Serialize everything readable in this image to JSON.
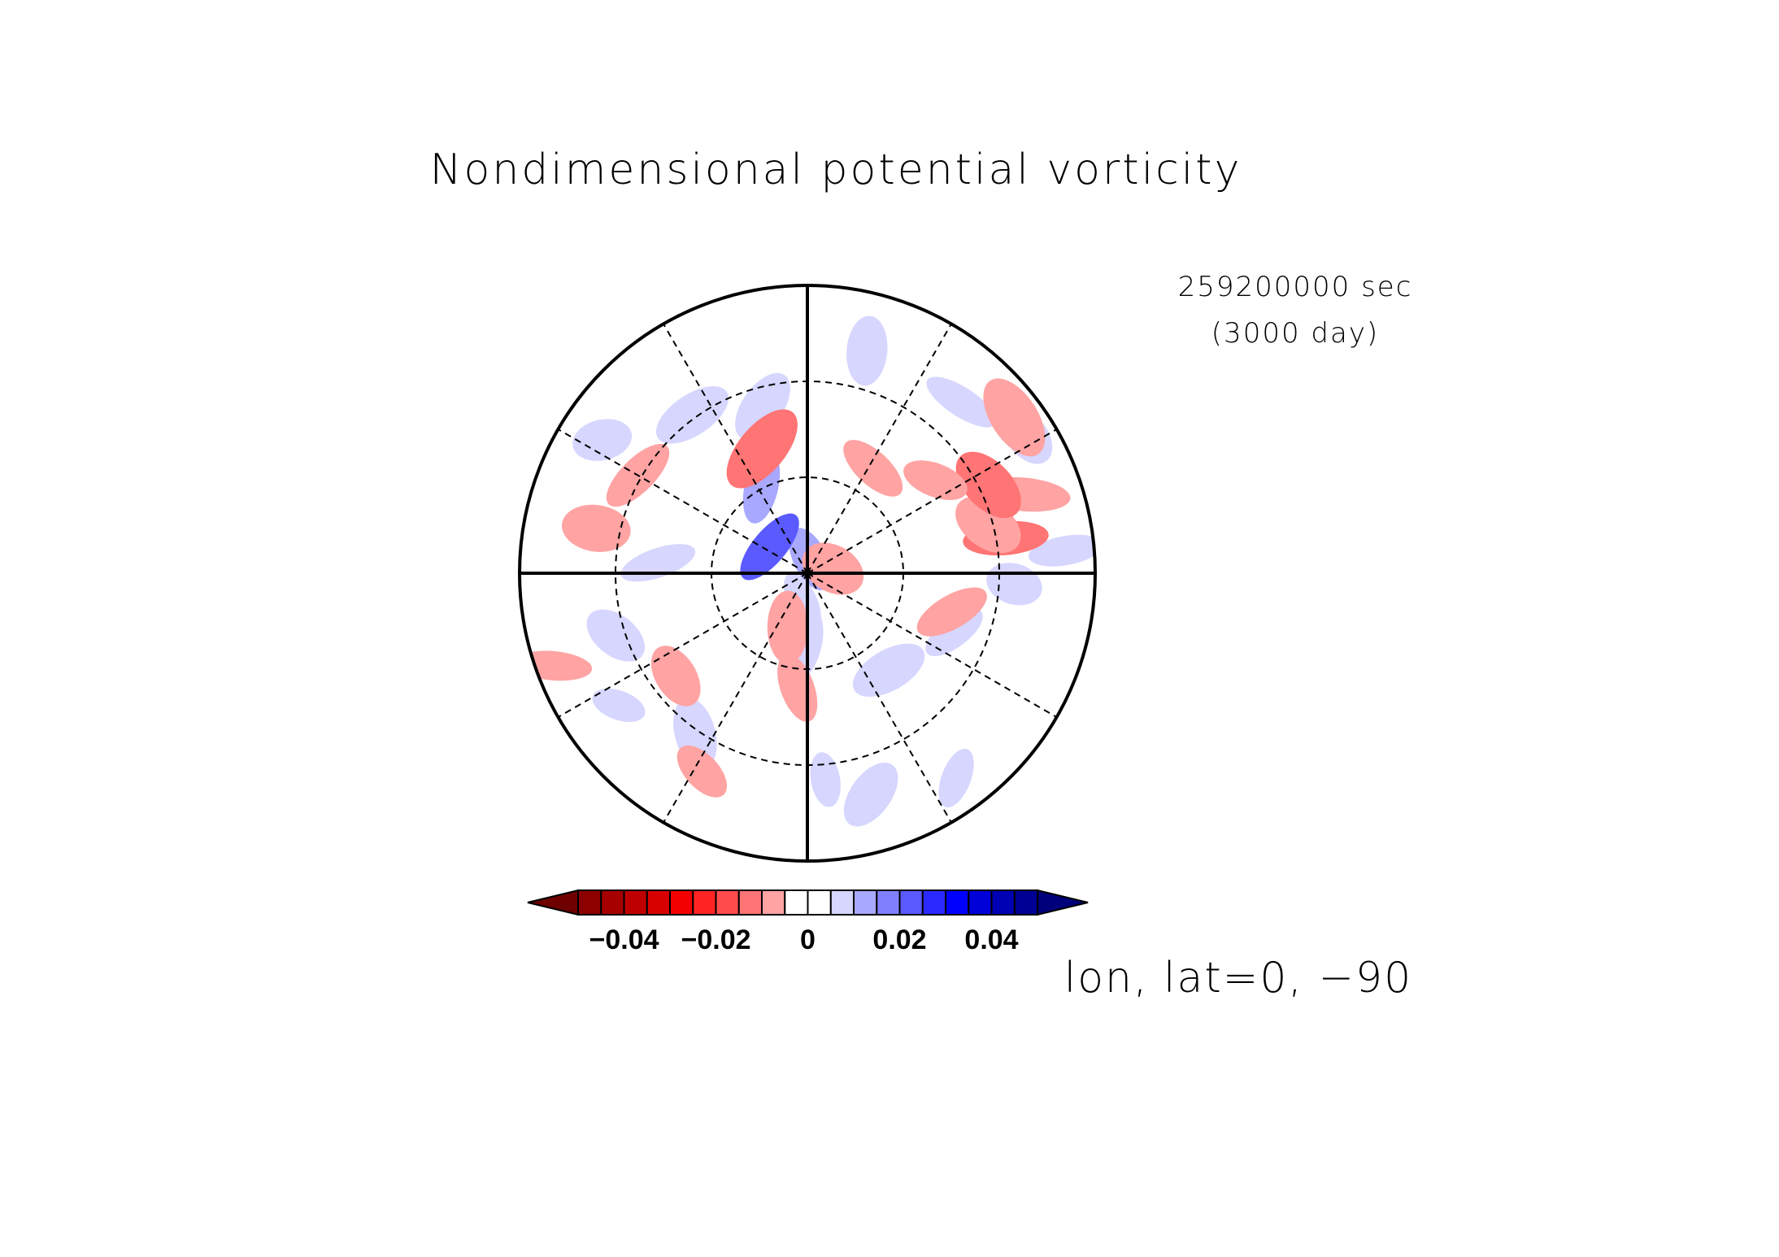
{
  "chart_data": {
    "type": "heatmap",
    "projection": "polar-stereographic",
    "title": "Nondimensional potential vorticity",
    "time_label": "259200000 sec",
    "day_label": "(3000 day)",
    "axis_label": "lon, lat=0, −90",
    "grid": true,
    "colorbar": {
      "tick_labels": [
        "−0.04",
        "−0.02",
        "0",
        "0.02",
        "0.04"
      ],
      "tick_values": [
        -0.04,
        -0.02,
        0,
        0.02,
        0.04
      ],
      "range": [
        -0.05,
        0.05
      ],
      "levels": 20,
      "colors": [
        "#8c0000",
        "#a60000",
        "#bf0000",
        "#d90000",
        "#f20000",
        "#ff2424",
        "#ff4b4b",
        "#ff7474",
        "#ffa3a3",
        "#ffffff",
        "#ffffff",
        "#d6d6ff",
        "#a8a8ff",
        "#8080ff",
        "#5a5aff",
        "#2a2aff",
        "#0000ff",
        "#0000d8",
        "#0000b4",
        "#000094"
      ],
      "extend_low_color": "#6e0000",
      "extend_high_color": "#00007a"
    },
    "features": [
      {
        "lon": 5,
        "r": 0.72,
        "value": 0.008
      },
      {
        "lon": 16,
        "r": 0.8,
        "value": 0.008
      },
      {
        "lon": 36,
        "r": 0.88,
        "value": 0.008
      },
      {
        "lon": 40,
        "r": 0.44,
        "value": 0.008
      },
      {
        "lon": 68,
        "r": 0.55,
        "value": 0.008
      },
      {
        "lon": 87,
        "r": 0.72,
        "value": 0.008
      },
      {
        "lon": 95,
        "r": 0.9,
        "value": 0.008
      },
      {
        "lon": 122,
        "r": 0.9,
        "value": 0.008
      },
      {
        "lon": 138,
        "r": 0.8,
        "value": 0.008
      },
      {
        "lon": 165,
        "r": 0.8,
        "value": 0.008
      },
      {
        "lon": 169,
        "r": 0.05,
        "value": 0.01
      },
      {
        "lon": 195,
        "r": 0.6,
        "value": 0.008
      },
      {
        "lon": 208,
        "r": 0.34,
        "value": 0.01
      },
      {
        "lon": 216,
        "r": 0.68,
        "value": 0.008
      },
      {
        "lon": 235,
        "r": 0.16,
        "value": 0.02
      },
      {
        "lon": 237,
        "r": 0.85,
        "value": 0.008
      },
      {
        "lon": 266,
        "r": 0.52,
        "value": 0.008
      },
      {
        "lon": 288,
        "r": 0.7,
        "value": 0.008
      },
      {
        "lon": 305,
        "r": 0.8,
        "value": 0.008
      },
      {
        "lon": 325,
        "r": 0.68,
        "value": 0.008
      },
      {
        "lon": 350,
        "r": 0.1,
        "value": 0.008
      },
      {
        "lon": 355,
        "r": 0.25,
        "value": 0.008
      },
      {
        "lon": 75,
        "r": 0.52,
        "value": -0.01
      },
      {
        "lon": 100,
        "r": 0.09,
        "value": -0.01
      },
      {
        "lon": 100,
        "r": 0.7,
        "value": -0.014
      },
      {
        "lon": 105,
        "r": 0.65,
        "value": -0.01
      },
      {
        "lon": 110,
        "r": 0.8,
        "value": -0.01
      },
      {
        "lon": 116,
        "r": 0.7,
        "value": -0.012
      },
      {
        "lon": 126,
        "r": 0.55,
        "value": -0.01
      },
      {
        "lon": 127,
        "r": 0.9,
        "value": -0.01
      },
      {
        "lon": 148,
        "r": 0.43,
        "value": -0.01
      },
      {
        "lon": 200,
        "r": 0.46,
        "value": -0.012
      },
      {
        "lon": 240,
        "r": 0.68,
        "value": -0.01
      },
      {
        "lon": 258,
        "r": 0.75,
        "value": -0.01
      },
      {
        "lon": 290,
        "r": 0.94,
        "value": -0.008
      },
      {
        "lon": 308,
        "r": 0.58,
        "value": -0.008
      },
      {
        "lon": 332,
        "r": 0.78,
        "value": -0.01
      },
      {
        "lon": 340,
        "r": 0.2,
        "value": -0.008
      },
      {
        "lon": 355,
        "r": 0.4,
        "value": -0.01
      }
    ]
  }
}
